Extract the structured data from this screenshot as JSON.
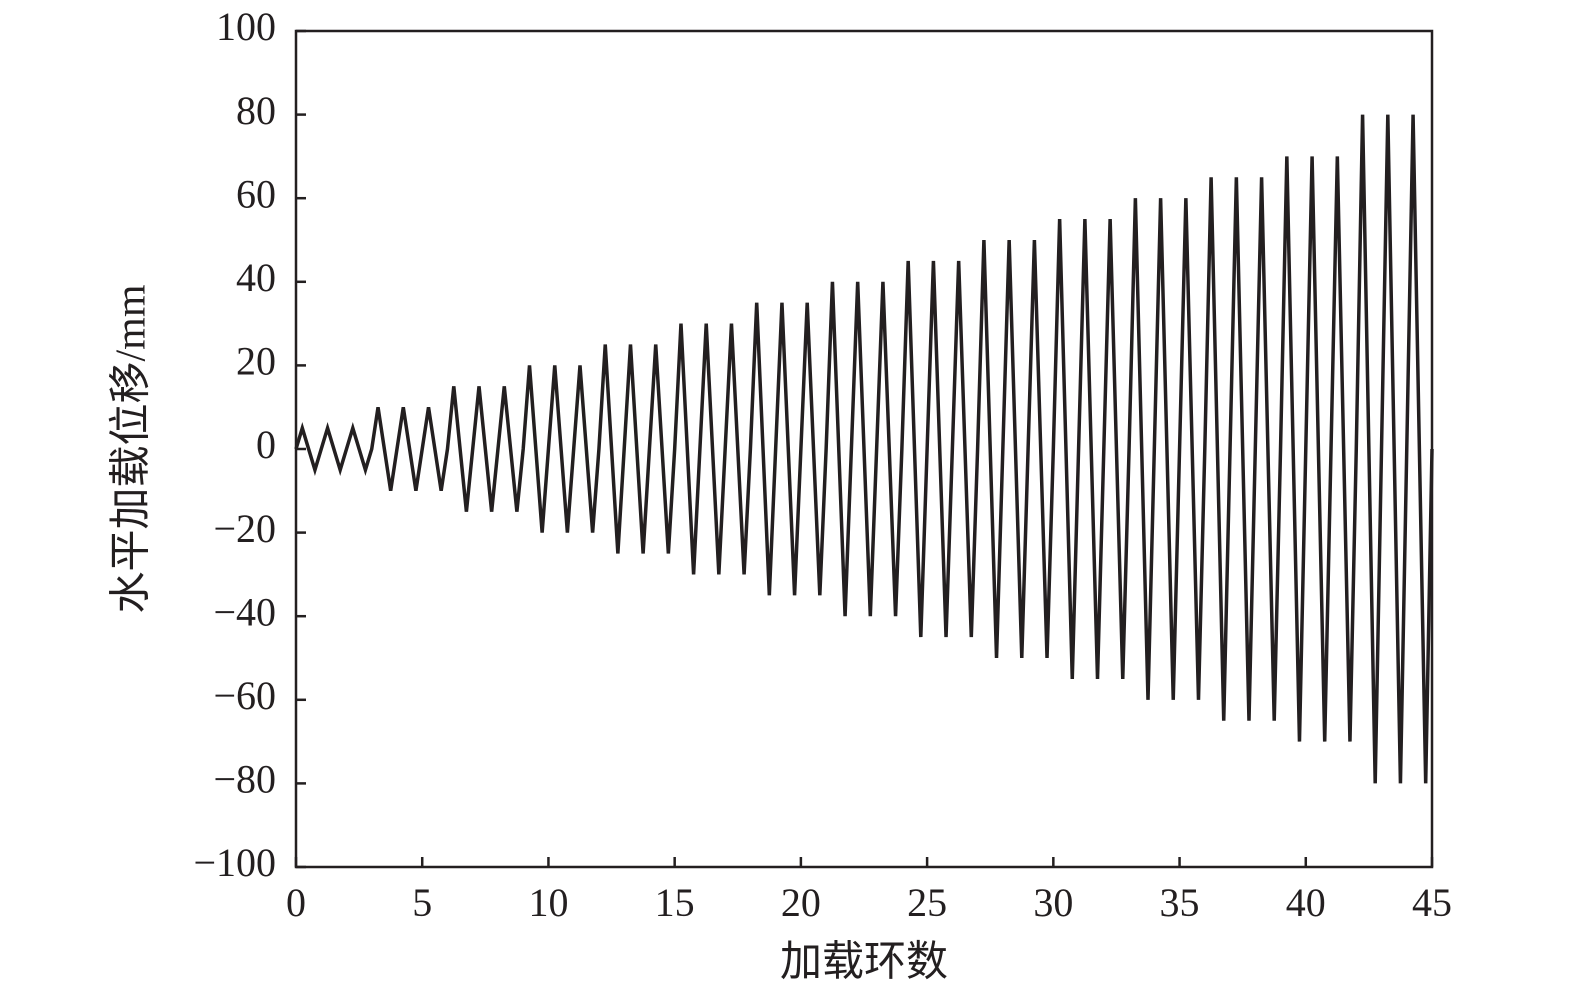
{
  "chart_data": {
    "type": "line",
    "xlabel": "加载环数",
    "ylabel": "水平加载位移/mm",
    "xlim": [
      0,
      45
    ],
    "ylim": [
      -100,
      100
    ],
    "xticks": [
      0,
      5,
      10,
      15,
      20,
      25,
      30,
      35,
      40,
      45
    ],
    "yticks": [
      {
        "value": -100,
        "label": "−100"
      },
      {
        "value": -80,
        "label": "−80"
      },
      {
        "value": -60,
        "label": "−60"
      },
      {
        "value": -40,
        "label": "−40"
      },
      {
        "value": -20,
        "label": "−20"
      },
      0,
      20,
      40,
      60,
      80,
      100
    ],
    "x": [
      0,
      0.25,
      0.75,
      1,
      1.25,
      1.75,
      2,
      2.25,
      2.75,
      3,
      3.25,
      3.75,
      4,
      4.25,
      4.75,
      5,
      5.25,
      5.75,
      6,
      6.25,
      6.75,
      7,
      7.25,
      7.75,
      8,
      8.25,
      8.75,
      9,
      9.25,
      9.75,
      10,
      10.25,
      10.75,
      11,
      11.25,
      11.75,
      12,
      12.25,
      12.75,
      13,
      13.25,
      13.75,
      14,
      14.25,
      14.75,
      15,
      15.25,
      15.75,
      16,
      16.25,
      16.75,
      17,
      17.25,
      17.75,
      18,
      18.25,
      18.75,
      19,
      19.25,
      19.75,
      20,
      20.25,
      20.75,
      21,
      21.25,
      21.75,
      22,
      22.25,
      22.75,
      23,
      23.25,
      23.75,
      24,
      24.25,
      24.75,
      25,
      25.25,
      25.75,
      26,
      26.25,
      26.75,
      27,
      27.25,
      27.75,
      28,
      28.25,
      28.75,
      29,
      29.25,
      29.75,
      30,
      30.25,
      30.75,
      31,
      31.25,
      31.75,
      32,
      32.25,
      32.75,
      33,
      33.25,
      33.75,
      34,
      34.25,
      34.75,
      35,
      35.25,
      35.75,
      36,
      36.25,
      36.75,
      37,
      37.25,
      37.75,
      38,
      38.25,
      38.75,
      39,
      39.25,
      39.75,
      40,
      40.25,
      40.75,
      41,
      41.25,
      41.75,
      42,
      42.25,
      42.75,
      43,
      43.25,
      43.75,
      44,
      44.25,
      44.75,
      45
    ],
    "series": [
      {
        "color": "#231f20",
        "values": [
          0,
          5,
          -5,
          0,
          5,
          -5,
          0,
          5,
          -5,
          0,
          10,
          -10,
          0,
          10,
          -10,
          0,
          10,
          -10,
          0,
          15,
          -15,
          0,
          15,
          -15,
          0,
          15,
          -15,
          0,
          20,
          -20,
          0,
          20,
          -20,
          0,
          20,
          -20,
          0,
          25,
          -25,
          0,
          25,
          -25,
          0,
          25,
          -25,
          0,
          30,
          -30,
          0,
          30,
          -30,
          0,
          30,
          -30,
          0,
          35,
          -35,
          0,
          35,
          -35,
          0,
          35,
          -35,
          0,
          40,
          -40,
          0,
          40,
          -40,
          0,
          40,
          -40,
          0,
          45,
          -45,
          0,
          45,
          -45,
          0,
          45,
          -45,
          0,
          50,
          -50,
          0,
          50,
          -50,
          0,
          50,
          -50,
          0,
          55,
          -55,
          0,
          55,
          -55,
          0,
          55,
          -55,
          0,
          60,
          -60,
          0,
          60,
          -60,
          0,
          60,
          -60,
          0,
          65,
          -65,
          0,
          65,
          -65,
          0,
          65,
          -65,
          0,
          70,
          -70,
          0,
          70,
          -70,
          0,
          70,
          -70,
          0,
          80,
          -80,
          0,
          80,
          -80,
          0,
          80,
          -80,
          0
        ]
      }
    ]
  }
}
